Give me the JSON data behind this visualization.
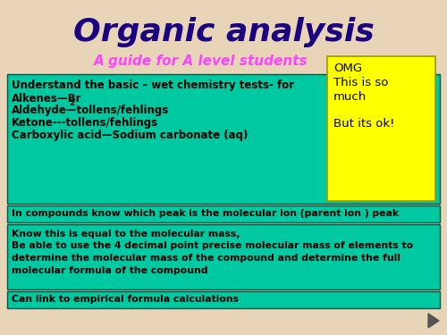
{
  "title": "Organic analysis",
  "subtitle": "A guide for A level students",
  "title_color": "#1a0080",
  "subtitle_color": "#ff44ff",
  "bg_color": "#e8d5b7",
  "teal_color": "#00c8a0",
  "yellow_box_color": "#ffff00",
  "box1_lines": [
    "Understand the basic – wet chemistry tests- for",
    "Alkenes—Br",
    "Aldehyde—tollens/fehlings",
    "Ketone---tollens/fehlings",
    "Carboxylic acid—Sodium carbonate (aq)"
  ],
  "box2_line": "In compounds know which peak is the molecular ion (parent ion ) peak",
  "box3_lines": [
    "Know this is equal to the molecular mass,",
    "Be able to use the 4 decimal point precise molecular mass of elements to",
    "determine the molecular mass of the compound and determine the full",
    "molecular formula of the compound"
  ],
  "box4_line": "Can link to empirical formula calculations",
  "omg_lines": [
    "OMG",
    "This is so",
    "much",
    "",
    "But its ok!"
  ]
}
